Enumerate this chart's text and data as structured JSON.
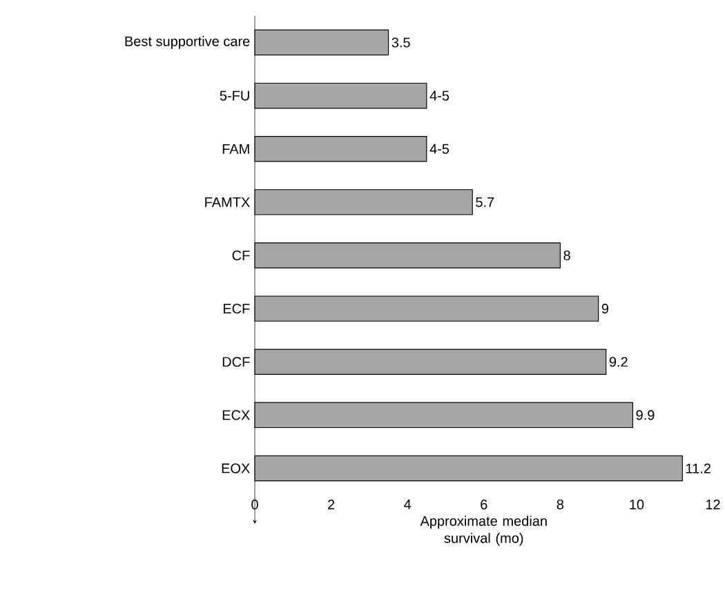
{
  "chart_data": {
    "type": "bar",
    "orientation": "horizontal",
    "xlabel": "Approximate median survival (mo)",
    "categories": [
      "Best supportive care",
      "5-FU",
      "FAM",
      "FAMTX",
      "CF",
      "ECF",
      "DCF",
      "ECX",
      "EOX"
    ],
    "values": [
      3.5,
      4.5,
      4.5,
      5.7,
      8,
      9,
      9.2,
      9.9,
      11.2
    ],
    "value_labels": [
      "3.5",
      "4-5",
      "4-5",
      "5.7",
      "8",
      "9",
      "9.2",
      "9.9",
      "11.2"
    ],
    "color": "#a6a6a6",
    "xlim": [
      0,
      12
    ],
    "xticks": [
      0,
      2,
      4,
      6,
      8,
      10,
      12
    ]
  }
}
